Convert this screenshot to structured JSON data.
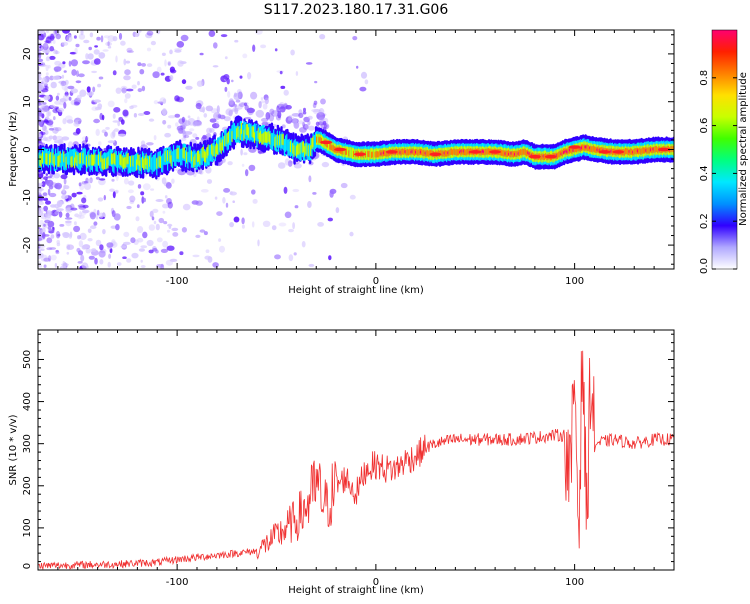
{
  "figure_title": "S117.2023.180.17.31.G06",
  "chart_data": [
    {
      "type": "heatmap",
      "title": "S117.2023.180.17.31.G06",
      "xlabel": "Height of straight line (km)",
      "ylabel": "Frequency (Hz)",
      "xlim": [
        -170,
        150
      ],
      "ylim": [
        -25,
        25
      ],
      "x_ticks": [
        -100,
        0,
        100
      ],
      "y_ticks": [
        -20,
        -10,
        0,
        10,
        20
      ],
      "colorbar": {
        "label": "Normalized spectral amplitude",
        "range": [
          0,
          1
        ],
        "ticks": [
          "0.0",
          "0.2",
          "0.4",
          "0.6",
          "0.8"
        ],
        "colors": [
          "#ffffff",
          "#b0a8ff",
          "#3000ff",
          "#0090ff",
          "#00e8ff",
          "#00ff80",
          "#40ff00",
          "#c8ff00",
          "#ffe000",
          "#ff8000",
          "#ff2000",
          "#ff0070"
        ]
      },
      "ridge": {
        "x": [
          -170,
          -150,
          -130,
          -110,
          -100,
          -90,
          -80,
          -70,
          -60,
          -50,
          -40,
          -33,
          -30,
          -28,
          -20,
          -10,
          0,
          10,
          20,
          30,
          40,
          50,
          60,
          70,
          75,
          80,
          90,
          95,
          100,
          105,
          110,
          120,
          130,
          140,
          150
        ],
        "y": [
          -2,
          -2,
          -2.5,
          -3,
          -1,
          -2,
          0,
          4,
          3,
          2,
          0,
          0,
          2,
          2,
          0,
          -1,
          -1,
          -0.5,
          -0.5,
          -1,
          -0.5,
          -0.5,
          -0.5,
          -1,
          -0.5,
          -1.5,
          -1.5,
          -0.5,
          0,
          0.5,
          0,
          -0.5,
          -0.5,
          0,
          0
        ]
      }
    },
    {
      "type": "line",
      "xlabel": "Height of straight line (km)",
      "ylabel": "SNR (10 * v/v)",
      "xlim": [
        -170,
        150
      ],
      "ylim": [
        0,
        570
      ],
      "x_ticks": [
        -100,
        0,
        100
      ],
      "y_ticks": [
        0,
        100,
        200,
        300,
        400,
        500
      ],
      "series": [
        {
          "name": "SNR",
          "color": "#f03030",
          "x": [
            -170,
            -150,
            -130,
            -110,
            -100,
            -90,
            -80,
            -70,
            -60,
            -50,
            -40,
            -35,
            -30,
            -25,
            -20,
            -15,
            -10,
            -5,
            0,
            5,
            10,
            15,
            20,
            25,
            30,
            40,
            50,
            60,
            70,
            80,
            90,
            95,
            98,
            100,
            102,
            104,
            106,
            108,
            110,
            120,
            130,
            140,
            150
          ],
          "values": [
            10,
            12,
            14,
            18,
            25,
            30,
            35,
            40,
            45,
            80,
            120,
            150,
            200,
            150,
            200,
            220,
            180,
            240,
            250,
            240,
            240,
            260,
            270,
            290,
            300,
            310,
            310,
            310,
            310,
            315,
            320,
            320,
            200,
            480,
            100,
            540,
            90,
            480,
            300,
            310,
            300,
            310,
            310
          ]
        }
      ]
    }
  ]
}
